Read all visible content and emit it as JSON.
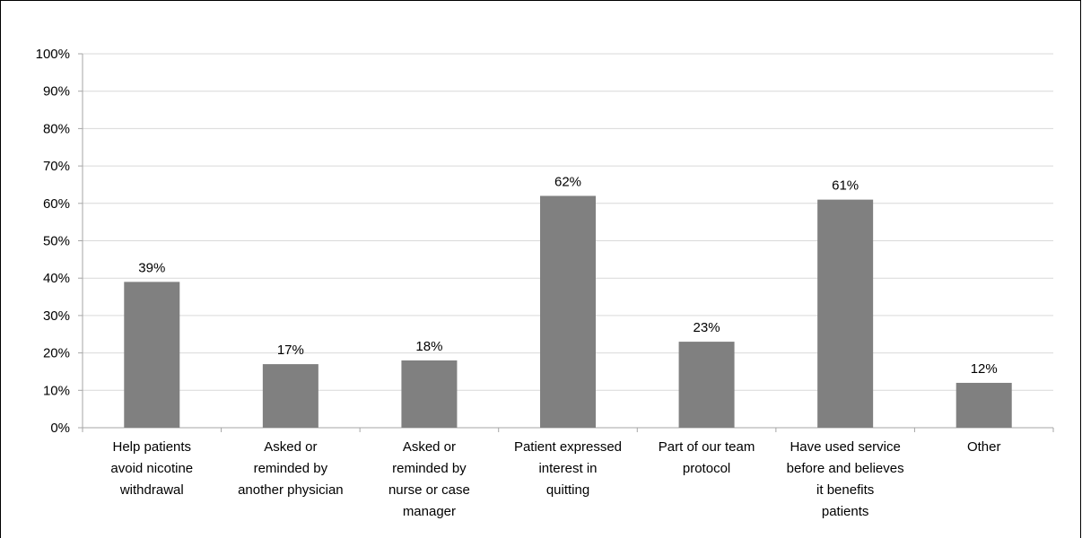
{
  "chart_data": {
    "type": "bar",
    "title": "",
    "xlabel": "",
    "ylabel": "",
    "ylim": [
      0,
      100
    ],
    "y_ticks": [
      "0%",
      "10%",
      "20%",
      "30%",
      "40%",
      "50%",
      "60%",
      "70%",
      "80%",
      "90%",
      "100%"
    ],
    "grid": true,
    "legend": "none",
    "bar_color": "#808080",
    "grid_color": "#d9d9d9",
    "categories": [
      [
        "Help patients",
        "avoid nicotine",
        "withdrawal"
      ],
      [
        "Asked or",
        "reminded by",
        "another physician"
      ],
      [
        "Asked or",
        "reminded by",
        "nurse or case",
        "manager"
      ],
      [
        "Patient expressed",
        "interest in",
        "quitting"
      ],
      [
        "Part of our team",
        "protocol"
      ],
      [
        "Have used service",
        "before and believes",
        "it benefits",
        "patients"
      ],
      [
        "Other"
      ]
    ],
    "values": [
      39,
      17,
      18,
      62,
      23,
      61,
      12
    ],
    "data_labels": [
      "39%",
      "17%",
      "18%",
      "62%",
      "23%",
      "61%",
      "12%"
    ]
  }
}
